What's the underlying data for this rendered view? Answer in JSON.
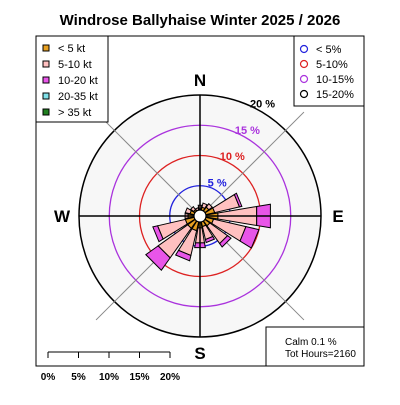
{
  "title": "Windrose  Ballyhaise Winter 2025 / 2026",
  "directions": {
    "n": "N",
    "e": "E",
    "s": "S",
    "w": "W"
  },
  "speed_legend": [
    {
      "label": "< 5  kt",
      "color": "#e8a020"
    },
    {
      "label": "5-10 kt",
      "color": "#ffc0c0"
    },
    {
      "label": "10-20 kt",
      "color": "#e855e8"
    },
    {
      "label": "20-35 kt",
      "color": "#80e0e8"
    },
    {
      "label": "> 35 kt",
      "color": "#208020"
    }
  ],
  "ring_legend": [
    {
      "label": "< 5%",
      "color": "#2222dd"
    },
    {
      "label": "5-10%",
      "color": "#dd2222"
    },
    {
      "label": "10-15%",
      "color": "#aa33dd"
    },
    {
      "label": "15-20%",
      "color": "#000000"
    }
  ],
  "calm": {
    "line1": "Calm 0.1 %",
    "line2": "Tot Hours=2160"
  },
  "scale_labels": [
    "0%",
    "5%",
    "10%",
    "15%",
    "20%"
  ],
  "chart_data": {
    "type": "windrose",
    "title": "Windrose  Ballyhaise Winter 2025 / 2026",
    "radial_max_percent": 20,
    "rings": [
      {
        "value": 5,
        "label": "5 %",
        "color": "#2222dd"
      },
      {
        "value": 10,
        "label": "10 %",
        "color": "#dd2222"
      },
      {
        "value": 15,
        "label": "15 %",
        "color": "#aa33dd"
      },
      {
        "value": 20,
        "label": "20 %",
        "color": "#000000"
      }
    ],
    "sector_count": 16,
    "sectors": [
      {
        "dir_deg": 0,
        "lt5": 1.2,
        "s5_10": 0.6,
        "s10_20": 0,
        "s20_35": 0,
        "gt35": 0
      },
      {
        "dir_deg": 22.5,
        "lt5": 1.5,
        "s5_10": 0.7,
        "s10_20": 0,
        "s20_35": 0,
        "gt35": 0
      },
      {
        "dir_deg": 45,
        "lt5": 1.8,
        "s5_10": 0.7,
        "s10_20": 0,
        "s20_35": 0,
        "gt35": 0
      },
      {
        "dir_deg": 67.5,
        "lt5": 2.5,
        "s5_10": 4.2,
        "s10_20": 0.4,
        "s20_35": 0,
        "gt35": 0
      },
      {
        "dir_deg": 90,
        "lt5": 3.0,
        "s5_10": 6.5,
        "s10_20": 2.3,
        "s20_35": 0,
        "gt35": 0
      },
      {
        "dir_deg": 112.5,
        "lt5": 2.3,
        "s5_10": 5.5,
        "s10_20": 2.2,
        "s20_35": 0,
        "gt35": 0
      },
      {
        "dir_deg": 135,
        "lt5": 2.0,
        "s5_10": 3.6,
        "s10_20": 0.7,
        "s20_35": 0,
        "gt35": 0
      },
      {
        "dir_deg": 157.5,
        "lt5": 1.8,
        "s5_10": 2.2,
        "s10_20": 0.5,
        "s20_35": 0,
        "gt35": 0
      },
      {
        "dir_deg": 180,
        "lt5": 2.0,
        "s5_10": 2.5,
        "s10_20": 0.8,
        "s20_35": 0,
        "gt35": 0
      },
      {
        "dir_deg": 202.5,
        "lt5": 2.5,
        "s5_10": 4.2,
        "s10_20": 0.9,
        "s20_35": 0,
        "gt35": 0
      },
      {
        "dir_deg": 225,
        "lt5": 2.5,
        "s5_10": 6.0,
        "s10_20": 2.5,
        "s20_35": 0,
        "gt35": 0
      },
      {
        "dir_deg": 247.5,
        "lt5": 2.5,
        "s5_10": 4.7,
        "s10_20": 0.8,
        "s20_35": 0,
        "gt35": 0
      },
      {
        "dir_deg": 270,
        "lt5": 2.0,
        "s5_10": 0.5,
        "s10_20": 0,
        "s20_35": 0,
        "gt35": 0
      },
      {
        "dir_deg": 292.5,
        "lt5": 1.7,
        "s5_10": 0.8,
        "s10_20": 0,
        "s20_35": 0,
        "gt35": 0
      },
      {
        "dir_deg": 315,
        "lt5": 1.3,
        "s5_10": 0.6,
        "s10_20": 0,
        "s20_35": 0,
        "gt35": 0
      },
      {
        "dir_deg": 337.5,
        "lt5": 1.0,
        "s5_10": 0.4,
        "s10_20": 0,
        "s20_35": 0,
        "gt35": 0
      }
    ],
    "speed_colors": [
      "#e8a020",
      "#ffc0c0",
      "#e855e8",
      "#80e0e8",
      "#208020"
    ],
    "calm_percent": 0.1,
    "total_hours": 2160
  }
}
